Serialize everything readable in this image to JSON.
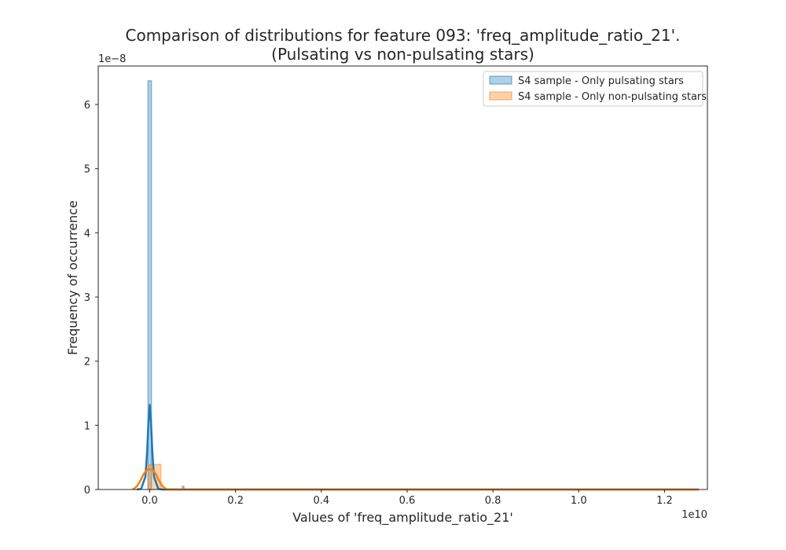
{
  "chart_data": {
    "type": "histogram",
    "title": "Comparison of distributions for feature 093: 'freq_amplitude_ratio_21'.",
    "subtitle": "(Pulsating vs non-pulsating stars)",
    "xlabel": "Values of 'freq_amplitude_ratio_21'",
    "ylabel": "Frequency of occurrence",
    "x_offset_text": "1e10",
    "y_offset_text": "1e−8",
    "xlim": [
      -0.12,
      1.3
    ],
    "ylim": [
      0,
      6.6
    ],
    "xticks": [
      0.0,
      0.2,
      0.4,
      0.6,
      0.8,
      1.0,
      1.2
    ],
    "xtick_labels": [
      "0.0",
      "0.2",
      "0.4",
      "0.6",
      "0.8",
      "1.0",
      "1.2"
    ],
    "yticks": [
      0,
      1,
      2,
      3,
      4,
      5,
      6
    ],
    "ytick_labels": [
      "0",
      "1",
      "2",
      "3",
      "4",
      "5",
      "6"
    ],
    "grid": false,
    "legend_position": "top-right",
    "series": [
      {
        "name": "S4 sample - Only pulsating stars",
        "color": "#1f77b4",
        "bins": [
          {
            "x0": -0.004,
            "x1": 0.004,
            "height": 6.37
          },
          {
            "x0": 0.076,
            "x1": 0.08,
            "height": 0.05
          }
        ],
        "kde": [
          [
            -0.03,
            0
          ],
          [
            -0.02,
            0.01
          ],
          [
            -0.01,
            0.2
          ],
          [
            -0.006,
            0.6
          ],
          [
            -0.003,
            1.05
          ],
          [
            0,
            1.32
          ],
          [
            0.003,
            1.05
          ],
          [
            0.006,
            0.6
          ],
          [
            0.01,
            0.2
          ],
          [
            0.02,
            0.01
          ],
          [
            0.03,
            0
          ],
          [
            1.28,
            0
          ]
        ]
      },
      {
        "name": "S4 sample - Only non-pulsating stars",
        "color": "#ff7f0e",
        "bins": [
          {
            "x0": -0.004,
            "x1": 0.026,
            "height": 0.39
          }
        ],
        "kde": [
          [
            -0.04,
            0.005
          ],
          [
            -0.035,
            0.02
          ],
          [
            -0.03,
            0.05
          ],
          [
            -0.025,
            0.1
          ],
          [
            -0.02,
            0.16
          ],
          [
            -0.015,
            0.23
          ],
          [
            -0.01,
            0.28
          ],
          [
            -0.005,
            0.31
          ],
          [
            0,
            0.32
          ],
          [
            0.005,
            0.31
          ],
          [
            0.01,
            0.28
          ],
          [
            0.015,
            0.23
          ],
          [
            0.02,
            0.16
          ],
          [
            0.025,
            0.1
          ],
          [
            0.03,
            0.05
          ],
          [
            0.035,
            0.02
          ],
          [
            0.04,
            0.005
          ],
          [
            0.05,
            0
          ],
          [
            1.28,
            0
          ]
        ]
      }
    ]
  }
}
